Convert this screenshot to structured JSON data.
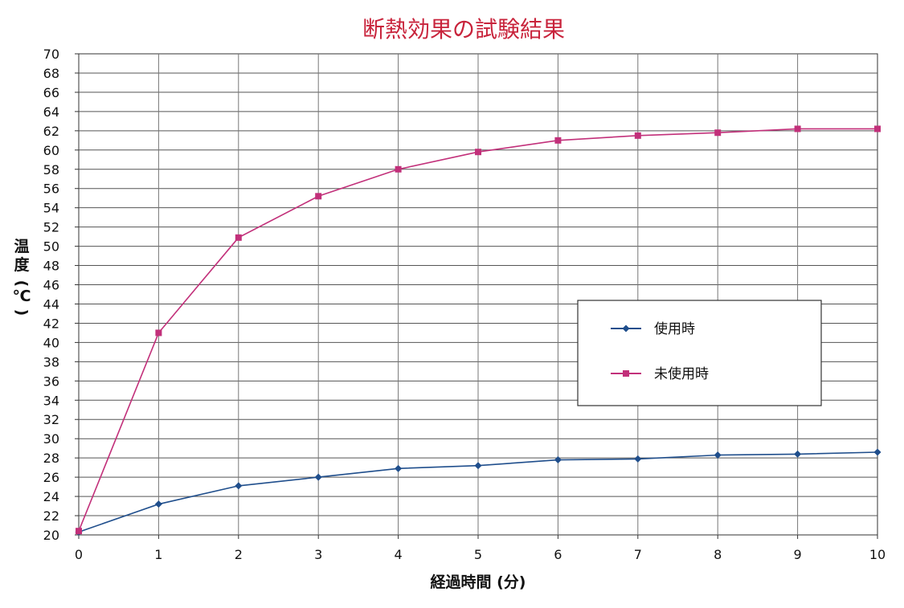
{
  "chart_data": {
    "type": "line",
    "title": "断熱効果の試験結果",
    "xlabel": "経過時間 (分)",
    "ylabel": [
      "温",
      "度",
      "(",
      "℃",
      ")"
    ],
    "x": [
      0,
      1,
      2,
      3,
      4,
      5,
      6,
      7,
      8,
      9,
      10
    ],
    "xlim": [
      0,
      10
    ],
    "ylim": [
      20,
      70
    ],
    "x_ticks": [
      "0",
      "1",
      "2",
      "3",
      "4",
      "5",
      "6",
      "7",
      "8",
      "9",
      "10"
    ],
    "y_ticks": [
      "20",
      "22",
      "24",
      "26",
      "28",
      "30",
      "32",
      "34",
      "36",
      "38",
      "40",
      "42",
      "44",
      "46",
      "48",
      "50",
      "52",
      "54",
      "56",
      "58",
      "60",
      "62",
      "64",
      "66",
      "68",
      "70"
    ],
    "grid": true,
    "legend_position": "center-right",
    "series": [
      {
        "name": "使用時",
        "color": "#1f4e8c",
        "marker": "diamond",
        "values": [
          20.3,
          23.2,
          25.1,
          26.0,
          26.9,
          27.2,
          27.8,
          27.9,
          28.3,
          28.4,
          28.6
        ]
      },
      {
        "name": "未使用時",
        "color": "#c2307a",
        "marker": "square",
        "values": [
          20.4,
          41.0,
          50.9,
          55.2,
          58.0,
          59.8,
          61.0,
          61.5,
          61.8,
          62.2,
          62.2
        ]
      }
    ]
  }
}
